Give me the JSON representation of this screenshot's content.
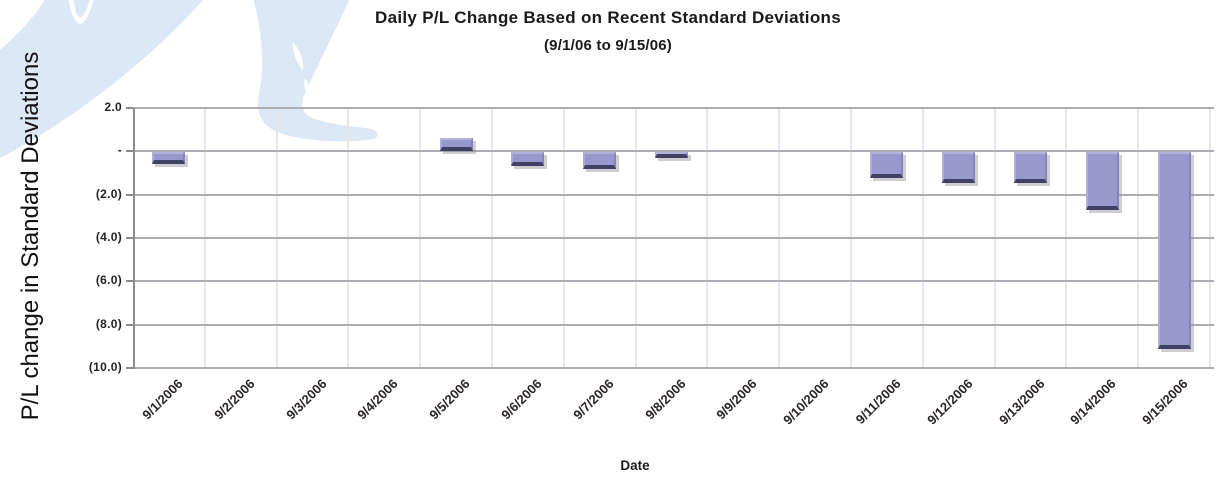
{
  "header": {
    "title": "Daily P/L Change Based on Recent Standard Deviations",
    "subtitle": "(9/1/06 to 9/15/06)"
  },
  "chart_data": {
    "type": "bar",
    "title": "Daily P/L Change Based on Recent Standard Deviations",
    "subtitle": "(9/1/06 to 9/15/06)",
    "xlabel": "Date",
    "ylabel": "P/L change in Standard Deviations",
    "categories": [
      "9/1/2006",
      "9/2/2006",
      "9/3/2006",
      "9/4/2006",
      "9/5/2006",
      "9/6/2006",
      "9/7/2006",
      "9/8/2006",
      "9/9/2006",
      "9/10/2006",
      "9/11/2006",
      "9/12/2006",
      "9/13/2006",
      "9/14/2006",
      "9/15/2006"
    ],
    "values": [
      -0.55,
      0,
      0,
      0,
      0.6,
      -0.65,
      -0.75,
      -0.2,
      0,
      0,
      -1.2,
      -1.4,
      -1.4,
      -2.65,
      -9.1
    ],
    "ylim": [
      -10,
      2
    ],
    "ytick_step": 2,
    "ytick_values": [
      2,
      0,
      -2,
      -4,
      -6,
      -8,
      -10
    ],
    "ytick_labels": [
      "2.0",
      "-",
      "(2.0)",
      "(4.0)",
      "(6.0)",
      "(8.0)",
      "(10.0)"
    ],
    "grid": true,
    "legend_position": "none",
    "colors": {
      "bar_fill": "#9898CD",
      "bar_edge_light": "#B2B2DC",
      "bar_edge_dark": "#414166",
      "grid_horizontal": "#ACACB2",
      "grid_vertical": "#E7E7EB",
      "axis_line": "#8C8C92",
      "watermark": "#DCE8F5"
    }
  }
}
